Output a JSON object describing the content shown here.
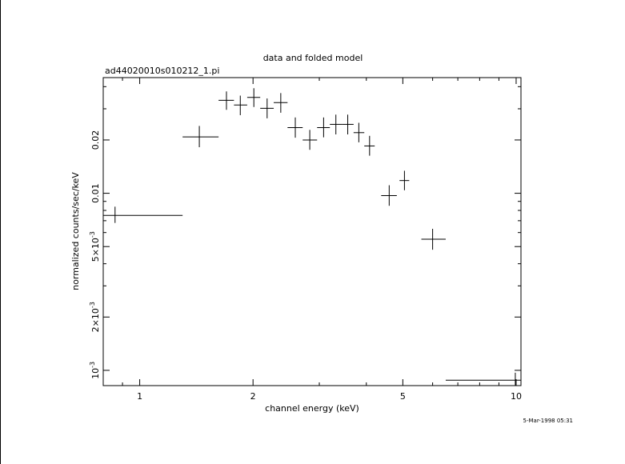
{
  "chart_data": {
    "type": "scatter",
    "title": "data and folded model",
    "subtitle": "ad44020010s010212_1.pi",
    "xlabel": "channel energy (keV)",
    "ylabel": "normalized counts/sec/keV",
    "footer": "5-Mar-1998 05:31",
    "x_scale": "log",
    "y_scale": "log",
    "xlim": [
      0.8,
      10.3
    ],
    "ylim": [
      0.00082,
      0.045
    ],
    "grid": false,
    "x_ticks": [
      {
        "value": 1,
        "label": "1"
      },
      {
        "value": 2,
        "label": "2"
      },
      {
        "value": 5,
        "label": "5"
      },
      {
        "value": 10,
        "label": "10"
      }
    ],
    "y_ticks": [
      {
        "value": 0.001,
        "label": "10^-3",
        "base": "10",
        "exp": "-3",
        "prefix": ""
      },
      {
        "value": 0.002,
        "label": "2x10^-3",
        "base": "2×10",
        "exp": "-3",
        "prefix": ""
      },
      {
        "value": 0.005,
        "label": "5x10^-3",
        "base": "5×10",
        "exp": "-3",
        "prefix": ""
      },
      {
        "value": 0.01,
        "label": "0.01",
        "base": "0.01",
        "exp": "",
        "prefix": ""
      },
      {
        "value": 0.02,
        "label": "0.02",
        "base": "0.02",
        "exp": "",
        "prefix": ""
      }
    ],
    "points": [
      {
        "x": 0.86,
        "xlo": 0.8,
        "xhi": 1.3,
        "y": 0.0075,
        "ylo": 0.0068,
        "yhi": 0.0084
      },
      {
        "x": 1.44,
        "xlo": 1.3,
        "xhi": 1.62,
        "y": 0.0208,
        "ylo": 0.0182,
        "yhi": 0.024
      },
      {
        "x": 1.7,
        "xlo": 1.62,
        "xhi": 1.78,
        "y": 0.0335,
        "ylo": 0.0296,
        "yhi": 0.0376
      },
      {
        "x": 1.85,
        "xlo": 1.78,
        "xhi": 1.93,
        "y": 0.0315,
        "ylo": 0.0276,
        "yhi": 0.0356
      },
      {
        "x": 2.01,
        "xlo": 1.93,
        "xhi": 2.09,
        "y": 0.0348,
        "ylo": 0.0307,
        "yhi": 0.0392
      },
      {
        "x": 2.18,
        "xlo": 2.09,
        "xhi": 2.27,
        "y": 0.0302,
        "ylo": 0.0265,
        "yhi": 0.0343
      },
      {
        "x": 2.37,
        "xlo": 2.27,
        "xhi": 2.47,
        "y": 0.0325,
        "ylo": 0.0285,
        "yhi": 0.0368
      },
      {
        "x": 2.59,
        "xlo": 2.47,
        "xhi": 2.71,
        "y": 0.0235,
        "ylo": 0.0206,
        "yhi": 0.0268
      },
      {
        "x": 2.83,
        "xlo": 2.71,
        "xhi": 2.96,
        "y": 0.02,
        "ylo": 0.0176,
        "yhi": 0.0228
      },
      {
        "x": 3.08,
        "xlo": 2.96,
        "xhi": 3.2,
        "y": 0.0235,
        "ylo": 0.0207,
        "yhi": 0.0268
      },
      {
        "x": 3.32,
        "xlo": 3.2,
        "xhi": 3.45,
        "y": 0.0245,
        "ylo": 0.0215,
        "yhi": 0.0278
      },
      {
        "x": 3.57,
        "xlo": 3.45,
        "xhi": 3.7,
        "y": 0.0245,
        "ylo": 0.0215,
        "yhi": 0.0278
      },
      {
        "x": 3.82,
        "xlo": 3.7,
        "xhi": 3.95,
        "y": 0.022,
        "ylo": 0.0194,
        "yhi": 0.025
      },
      {
        "x": 4.08,
        "xlo": 3.95,
        "xhi": 4.21,
        "y": 0.0185,
        "ylo": 0.0163,
        "yhi": 0.0211
      },
      {
        "x": 4.6,
        "xlo": 4.38,
        "xhi": 4.82,
        "y": 0.0097,
        "ylo": 0.0085,
        "yhi": 0.0111
      },
      {
        "x": 5.05,
        "xlo": 4.9,
        "xhi": 5.2,
        "y": 0.0118,
        "ylo": 0.0104,
        "yhi": 0.0134
      },
      {
        "x": 6.0,
        "xlo": 5.6,
        "xhi": 6.5,
        "y": 0.0055,
        "ylo": 0.0048,
        "yhi": 0.0063
      },
      {
        "x": 9.95,
        "xlo": 6.5,
        "xhi": 10.3,
        "y": 0.00088,
        "ylo": 0.00082,
        "yhi": 0.00097
      }
    ]
  }
}
